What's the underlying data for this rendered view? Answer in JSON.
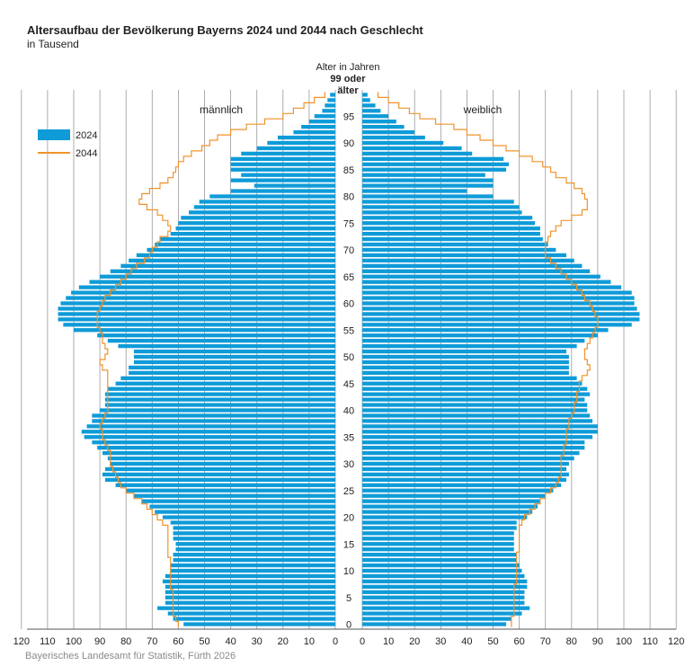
{
  "title": "Altersaufbau der Bevölkerung Bayerns 2024 und 2044 nach Geschlecht",
  "subtitle": "in Tausend",
  "source": "Bayerisches Landesamt für Statistik, Fürth 2026",
  "colors": {
    "bar2024": "#0e9bd8",
    "line2044": "#f0932b",
    "grid": "#9a9a9a"
  },
  "chart_data": {
    "type": "bar",
    "orientation": "horizontal-population-pyramid",
    "title": "Altersaufbau der Bevölkerung Bayerns 2024 und 2044 nach Geschlecht",
    "subtitle": "in Tausend",
    "age_axis_title_line1": "Alter in Jahren",
    "age_axis_title_line2": "99 oder",
    "age_axis_title_line3": "älter",
    "left_label": "männlich",
    "right_label": "weiblich",
    "age_ticks": [
      "0",
      "5",
      "10",
      "15",
      "20",
      "25",
      "30",
      "35",
      "40",
      "45",
      "50",
      "55",
      "60",
      "65",
      "70",
      "75",
      "80",
      "85",
      "90",
      "95"
    ],
    "x_ticks": [
      "120",
      "110",
      "100",
      "90",
      "80",
      "70",
      "60",
      "50",
      "40",
      "30",
      "20",
      "10",
      "0",
      "0",
      "10",
      "20",
      "30",
      "40",
      "50",
      "60",
      "70",
      "80",
      "90",
      "100",
      "110",
      "120"
    ],
    "xlim": [
      0,
      120
    ],
    "ages": [
      0,
      1,
      2,
      3,
      4,
      5,
      6,
      7,
      8,
      9,
      10,
      11,
      12,
      13,
      14,
      15,
      16,
      17,
      18,
      19,
      20,
      21,
      22,
      23,
      24,
      25,
      26,
      27,
      28,
      29,
      30,
      31,
      32,
      33,
      34,
      35,
      36,
      37,
      38,
      39,
      40,
      41,
      42,
      43,
      44,
      45,
      46,
      47,
      48,
      49,
      50,
      51,
      52,
      53,
      54,
      55,
      56,
      57,
      58,
      59,
      60,
      61,
      62,
      63,
      64,
      65,
      66,
      67,
      68,
      69,
      70,
      71,
      72,
      73,
      74,
      75,
      76,
      77,
      78,
      79,
      80,
      81,
      82,
      83,
      84,
      85,
      86,
      87,
      88,
      89,
      90,
      91,
      92,
      93,
      94,
      95,
      96,
      97,
      98,
      99
    ],
    "legend": [
      {
        "name": "2024",
        "kind": "bar"
      },
      {
        "name": "2044",
        "kind": "line"
      }
    ],
    "series": [
      {
        "name": "2024",
        "sex": "männlich",
        "values": [
          58,
          62,
          64,
          68,
          65,
          65,
          65,
          65,
          66,
          65,
          63,
          63,
          62,
          62,
          61,
          61,
          62,
          62,
          62,
          63,
          66,
          69,
          71,
          74,
          77,
          80,
          84,
          88,
          89,
          88,
          86,
          87,
          89,
          91,
          93,
          96,
          97,
          95,
          93,
          93,
          90,
          88,
          88,
          88,
          87,
          84,
          82,
          79,
          79,
          77,
          77,
          77,
          83,
          87,
          91,
          100,
          104,
          106,
          106,
          106,
          105,
          103,
          101,
          98,
          94,
          90,
          86,
          82,
          79,
          76,
          72,
          69,
          67,
          63,
          61,
          60,
          59,
          56,
          54,
          52,
          48,
          40,
          31,
          40,
          36,
          40,
          40,
          40,
          36,
          30,
          26,
          22,
          16,
          13,
          10,
          8,
          5,
          4,
          3,
          2
        ]
      },
      {
        "name": "2024",
        "sex": "weiblich",
        "values": [
          55,
          57,
          61,
          64,
          62,
          62,
          62,
          63,
          63,
          62,
          61,
          60,
          59,
          59,
          58,
          58,
          58,
          58,
          59,
          59,
          63,
          65,
          67,
          68,
          70,
          73,
          76,
          78,
          79,
          78,
          79,
          81,
          83,
          85,
          85,
          88,
          90,
          90,
          88,
          87,
          86,
          86,
          85,
          87,
          86,
          84,
          82,
          79,
          79,
          79,
          79,
          78,
          82,
          85,
          90,
          94,
          103,
          106,
          106,
          105,
          104,
          104,
          103,
          99,
          95,
          91,
          87,
          84,
          81,
          78,
          74,
          71,
          69,
          68,
          68,
          66,
          65,
          61,
          60,
          58,
          50,
          40,
          50,
          50,
          47,
          55,
          56,
          54,
          42,
          38,
          31,
          24,
          20,
          16,
          13,
          10,
          7,
          5,
          3,
          2
        ]
      },
      {
        "name": "2044",
        "sex": "männlich",
        "values": [
          60,
          61,
          62,
          62,
          62,
          62,
          62,
          63,
          63,
          63,
          63,
          63,
          63,
          64,
          64,
          64,
          64,
          64,
          64,
          66,
          68,
          70,
          72,
          74,
          77,
          80,
          82,
          83,
          84,
          85,
          86,
          86,
          86,
          87,
          88,
          89,
          89,
          90,
          89,
          88,
          87,
          87,
          87,
          87,
          87,
          87,
          87,
          87,
          89,
          90,
          88,
          87,
          88,
          89,
          89,
          90,
          91,
          91,
          91,
          90,
          89,
          88,
          86,
          84,
          82,
          80,
          78,
          76,
          73,
          71,
          70,
          68,
          67,
          64,
          63,
          64,
          66,
          68,
          72,
          75,
          74,
          71,
          67,
          64,
          62,
          61,
          60,
          58,
          55,
          51,
          48,
          45,
          40,
          34,
          27,
          20,
          16,
          12,
          8,
          4
        ]
      },
      {
        "name": "2044",
        "sex": "weiblich",
        "values": [
          57,
          57,
          58,
          58,
          58,
          58,
          58,
          58,
          59,
          59,
          59,
          59,
          59,
          59,
          60,
          60,
          60,
          60,
          60,
          61,
          62,
          64,
          66,
          68,
          70,
          72,
          74,
          75,
          76,
          76,
          76,
          76,
          77,
          77,
          78,
          78,
          78,
          79,
          79,
          80,
          81,
          81,
          82,
          82,
          83,
          83,
          84,
          86,
          87,
          86,
          85,
          85,
          86,
          87,
          88,
          89,
          90,
          90,
          89,
          88,
          87,
          85,
          84,
          82,
          80,
          78,
          76,
          74,
          72,
          70,
          70,
          70,
          71,
          72,
          74,
          76,
          80,
          84,
          86,
          86,
          85,
          84,
          81,
          78,
          74,
          72,
          69,
          65,
          60,
          55,
          50,
          45,
          40,
          35,
          28,
          22,
          18,
          14,
          10,
          6
        ]
      }
    ]
  }
}
